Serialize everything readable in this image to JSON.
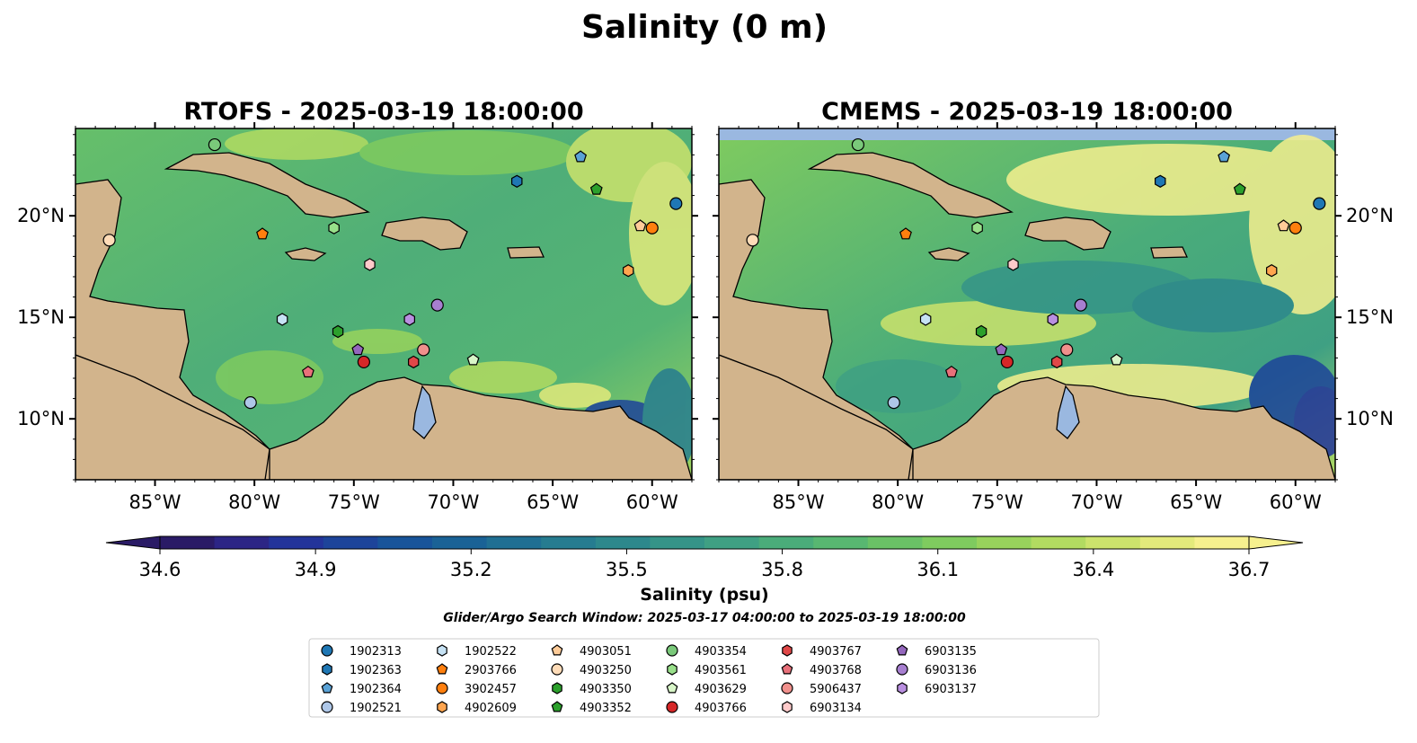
{
  "figure": {
    "suptitle": "Salinity (0 m)",
    "colorbar_label": "Salinity (psu)",
    "search_window": "Glider/Argo Search Window: 2025-03-17 04:00:00 to 2025-03-19 18:00:00"
  },
  "panels": [
    {
      "title": "RTOFS - 2025-03-19 18:00:00"
    },
    {
      "title": "CMEMS - 2025-03-19 18:00:00"
    }
  ],
  "map": {
    "lon_range": [
      -89.0,
      -58.0
    ],
    "lat_range": [
      7.0,
      24.3
    ],
    "lon_ticks": [
      {
        "value": -85,
        "label": "85°W"
      },
      {
        "value": -80,
        "label": "80°W"
      },
      {
        "value": -75,
        "label": "75°W"
      },
      {
        "value": -70,
        "label": "70°W"
      },
      {
        "value": -65,
        "label": "65°W"
      },
      {
        "value": -60,
        "label": "60°W"
      }
    ],
    "lat_ticks": [
      {
        "value": 10,
        "label": "10°N"
      },
      {
        "value": 15,
        "label": "15°N"
      },
      {
        "value": 20,
        "label": "20°N"
      }
    ],
    "colors": {
      "land": "#d2b48c",
      "pacific": "#27215f",
      "lakes": "#9ab8e0",
      "coast": "#000000"
    }
  },
  "colorbar": {
    "min": 34.6,
    "max": 36.7,
    "ticks": [
      "34.6",
      "34.9",
      "35.2",
      "35.5",
      "35.8",
      "36.1",
      "36.4",
      "36.7"
    ],
    "colors": [
      "#2a1b66",
      "#2c2585",
      "#23349a",
      "#1d449a",
      "#18549a",
      "#1a6296",
      "#206f93",
      "#267c90",
      "#2d888c",
      "#359488",
      "#3fa083",
      "#4aac7a",
      "#58b771",
      "#6ac166",
      "#7fcb5f",
      "#98d35c",
      "#b2db61",
      "#cce36c",
      "#e3ea7b",
      "#f6f08e"
    ],
    "extend": "both"
  },
  "chart_data": {
    "type": "scatter",
    "title": "Salinity (0 m)",
    "xlabel": "",
    "ylabel": "",
    "xlim": [
      -89.0,
      -58.0
    ],
    "ylim": [
      7.0,
      24.3
    ],
    "series": [
      {
        "name": "1902313",
        "marker": "circle",
        "color": "#1f77b4",
        "lon": -58.8,
        "lat": 20.6
      },
      {
        "name": "1902363",
        "marker": "hexagon",
        "color": "#1f77b4",
        "lon": -66.8,
        "lat": 21.7
      },
      {
        "name": "1902364",
        "marker": "pentagon",
        "color": "#5aa2d6",
        "lon": -63.6,
        "lat": 22.9
      },
      {
        "name": "1902521",
        "marker": "circle",
        "color": "#aec7e8",
        "lon": -80.2,
        "lat": 10.8
      },
      {
        "name": "1902522",
        "marker": "hexagon",
        "color": "#c6e2f4",
        "lon": -78.6,
        "lat": 14.9
      },
      {
        "name": "2903766",
        "marker": "pentagon",
        "color": "#ff7f0e",
        "lon": -79.6,
        "lat": 19.1
      },
      {
        "name": "3902457",
        "marker": "circle",
        "color": "#ff7f0e",
        "lon": -60.0,
        "lat": 19.4
      },
      {
        "name": "4902609",
        "marker": "hexagon",
        "color": "#ffa54f",
        "lon": -61.2,
        "lat": 17.3
      },
      {
        "name": "4903051",
        "marker": "pentagon",
        "color": "#ffcc99",
        "lon": -60.6,
        "lat": 19.5
      },
      {
        "name": "4903250",
        "marker": "circle",
        "color": "#ffdcb8",
        "lon": -87.3,
        "lat": 18.8
      },
      {
        "name": "4903350",
        "marker": "hexagon",
        "color": "#2ca02c",
        "lon": -75.8,
        "lat": 14.3
      },
      {
        "name": "4903352",
        "marker": "pentagon",
        "color": "#2ca02c",
        "lon": -62.8,
        "lat": 21.3
      },
      {
        "name": "4903354",
        "marker": "circle",
        "color": "#7ac97a",
        "lon": -82.0,
        "lat": 23.5
      },
      {
        "name": "4903561",
        "marker": "hexagon",
        "color": "#98df8a",
        "lon": -76.0,
        "lat": 19.4
      },
      {
        "name": "4903629",
        "marker": "pentagon",
        "color": "#d8f5c8",
        "lon": -69.0,
        "lat": 12.9
      },
      {
        "name": "4903766",
        "marker": "circle",
        "color": "#d62728",
        "lon": -74.5,
        "lat": 12.8
      },
      {
        "name": "4903767",
        "marker": "hexagon",
        "color": "#e04848",
        "lon": -72.0,
        "lat": 12.8
      },
      {
        "name": "4903768",
        "marker": "pentagon",
        "color": "#e8707a",
        "lon": -77.3,
        "lat": 12.3
      },
      {
        "name": "5906437",
        "marker": "circle",
        "color": "#f0908c",
        "lon": -71.5,
        "lat": 13.4
      },
      {
        "name": "6903134",
        "marker": "hexagon",
        "color": "#ffcaca",
        "lon": -74.2,
        "lat": 17.6
      },
      {
        "name": "6903135",
        "marker": "pentagon",
        "color": "#9467bd",
        "lon": -74.8,
        "lat": 13.4
      },
      {
        "name": "6903136",
        "marker": "circle",
        "color": "#a77fd0",
        "lon": -70.8,
        "lat": 15.6
      },
      {
        "name": "6903137",
        "marker": "hexagon",
        "color": "#b98fe0",
        "lon": -72.2,
        "lat": 14.9
      }
    ]
  }
}
